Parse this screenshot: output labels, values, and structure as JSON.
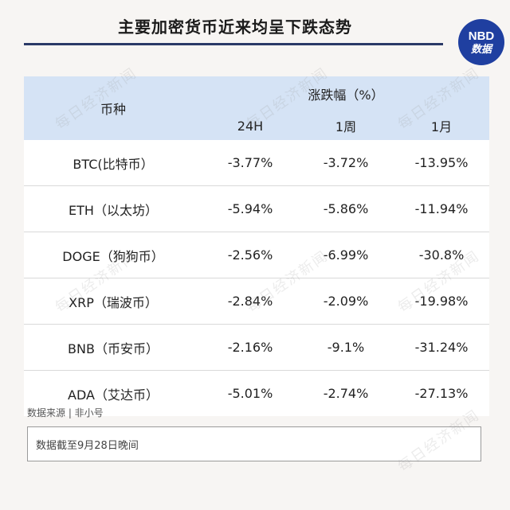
{
  "title": "主要加密货币近来均呈下跌态势",
  "logo": {
    "line1": "NBD",
    "line2": "数据"
  },
  "watermark_text": "每日经济新闻",
  "table": {
    "header_coin": "币种",
    "header_change": "涨跌幅（%）",
    "periods": [
      "24H",
      "1周",
      "1月"
    ],
    "rows": [
      {
        "name": "BTC(比特币）",
        "h24": "-3.77%",
        "w1": "-3.72%",
        "m1": "-13.95%"
      },
      {
        "name": "ETH（以太坊）",
        "h24": "-5.94%",
        "w1": "-5.86%",
        "m1": "-11.94%"
      },
      {
        "name": "DOGE（狗狗币）",
        "h24": "-2.56%",
        "w1": "-6.99%",
        "m1": "-30.8%"
      },
      {
        "name": "XRP（瑞波币）",
        "h24": "-2.84%",
        "w1": "-2.09%",
        "m1": "-19.98%"
      },
      {
        "name": "BNB（币安币）",
        "h24": "-2.16%",
        "w1": "-9.1%",
        "m1": "-31.24%"
      },
      {
        "name": "ADA（艾达币）",
        "h24": "-5.01%",
        "w1": "-2.74%",
        "m1": "-27.13%"
      }
    ]
  },
  "source": "数据来源 | 非小号",
  "note": "数据截至9月28日晚间",
  "colors": {
    "header_bg": "#d5e3f5",
    "accent": "#2b3a67",
    "logo_bg": "#1f3fa0"
  }
}
